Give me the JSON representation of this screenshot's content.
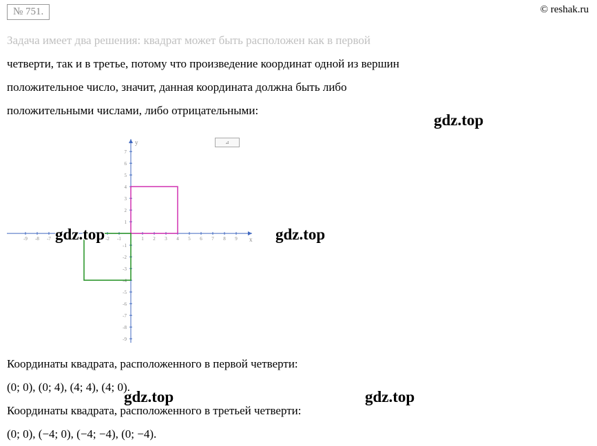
{
  "problem_number": "№ 751.",
  "copyright": "© reshak.ru",
  "paragraph": {
    "line1_faded": "Задача имеет два решения: квадрат может быть расположен как в первой",
    "line2": "четверти, так и в третье, потому что произведение координат одной из вершин",
    "line3": "положительное число, значит, данная координата должна быть либо",
    "line4": "положительными числами, либо отрицательными:"
  },
  "watermark_text": "gdz.top",
  "chart": {
    "type": "coordinate-plane",
    "x_range": [
      -9,
      9
    ],
    "y_range": [
      -9,
      8
    ],
    "axis_color": "#4169c0",
    "tick_color": "#4169c0",
    "tick_label_color": "#888888",
    "tick_font_size": 7,
    "x_label": "x",
    "y_label": "y",
    "squares": [
      {
        "name": "first-quadrant-square",
        "points": [
          [
            0,
            0
          ],
          [
            0,
            4
          ],
          [
            4,
            4
          ],
          [
            4,
            0
          ]
        ],
        "stroke": "#d030b0",
        "stroke_width": 1.5,
        "fill": "none"
      },
      {
        "name": "third-quadrant-square",
        "points": [
          [
            0,
            0
          ],
          [
            -4,
            0
          ],
          [
            -4,
            -4
          ],
          [
            0,
            -4
          ]
        ],
        "stroke": "#209020",
        "stroke_width": 1.5,
        "fill": "none"
      }
    ]
  },
  "summary": {
    "q1_label": "Координаты квадрата, расположенного в первой четверти:",
    "q1_coords": "(0; 0), (0;  4), (4; 4), (4; 0).",
    "q3_label": "Координаты квадрата, расположенного в третьей четверти:",
    "q3_coords": "(0; 0), (−4; 0), (−4;  −4), (0;  −4)."
  },
  "ruler_label": "⊿"
}
